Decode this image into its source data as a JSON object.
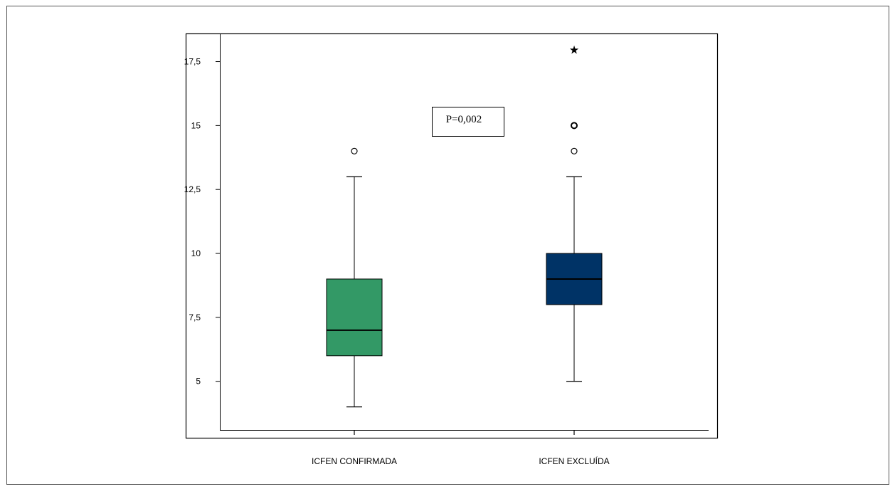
{
  "chart_data": {
    "type": "box",
    "title": "",
    "xlabel": "",
    "ylabel": "",
    "ylim": [
      3.1,
      18.6
    ],
    "yticks": [
      5,
      7.5,
      10,
      12.5,
      15,
      17.5
    ],
    "ytick_labels": [
      "5",
      "7,5",
      "10",
      "12,5",
      "15",
      "17,5"
    ],
    "grid": false,
    "categories": [
      "ICFEN CONFIRMADA",
      "ICFEN EXCLUÍDA"
    ],
    "boxes": [
      {
        "category": "ICFEN CONFIRMADA",
        "color": "#339966",
        "whisker_low": 4,
        "q1": 6,
        "median": 7,
        "q3": 9,
        "whisker_high": 13,
        "outliers": [
          14
        ],
        "extremes": []
      },
      {
        "category": "ICFEN EXCLUÍDA",
        "color": "#003366",
        "whisker_low": 5,
        "q1": 8,
        "median": 9,
        "q3": 10,
        "whisker_high": 13,
        "outliers": [
          14,
          15,
          15
        ],
        "extremes": [
          18
        ]
      }
    ],
    "annotation": "P=0,002"
  }
}
